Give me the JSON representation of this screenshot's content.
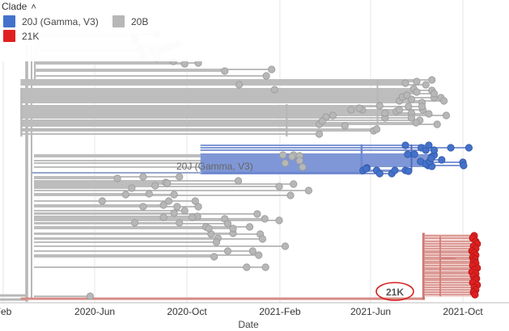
{
  "legend": {
    "title": "Clade",
    "items": [
      {
        "label": "20J (Gamma, V3)",
        "color": "#4472ca"
      },
      {
        "label": "20B",
        "color": "#b7b7b7"
      },
      {
        "label": "21K",
        "color": "#e02020"
      }
    ]
  },
  "chart_data": {
    "type": "scatter",
    "xlabel": "Date",
    "xlim": [
      "2020-02-01",
      "2021-11-20"
    ],
    "xticks": [
      "Feb",
      "2020-Jun",
      "2020-Oct",
      "2021-Feb",
      "2021-Jun",
      "2021-Oct"
    ],
    "branch_labels": [
      "20J (Gamma, V3)",
      "21K"
    ],
    "colors": {
      "20B": "#b7b7b7",
      "20J": "#4472ca",
      "21K": "#e02020"
    },
    "series": [
      {
        "name": "20B",
        "dates": [
          "2020-08-27",
          "2020-08-22",
          "2020-07-31",
          "2020-09-18",
          "2020-07-24",
          "2020-09-10",
          "2020-08-15",
          "2020-07-24",
          "2020-08-22",
          "2020-08-04",
          "2020-11-20",
          "2021-01-14",
          "2020-10-16",
          "2020-09-13",
          "2021-01-21",
          "2021-01-25",
          "2020-09-28",
          "2020-12-09",
          "2020-09-03",
          "2021-08-01",
          "2021-07-17",
          "2021-07-28",
          "2021-08-21",
          "2021-08-13",
          "2021-08-21",
          "2021-07-25",
          "2021-08-24",
          "2021-07-21",
          "2021-07-09",
          "2021-09-02",
          "2021-08-24",
          "2021-08-01",
          "2021-06-13",
          "2021-08-08",
          "2021-07-25",
          "2021-06-20",
          "2021-07-05",
          "2021-08-05",
          "2021-07-31",
          "2021-08-28",
          "2021-07-25",
          "2021-08-09",
          "2021-08-17",
          "2021-09-09",
          "2021-07-13",
          "2021-07-19",
          "2021-07-09",
          "2021-08-08",
          "2021-09-06",
          "2021-03-25",
          "2021-04-03",
          "2021-04-28",
          "2021-04-12",
          "2021-05-21",
          "2021-06-20",
          "2021-03-29",
          "2021-06-05",
          "2021-03-25",
          "2021-06-09",
          "2021-05-06",
          "2021-05-17",
          "2021-02-19",
          "2020-07-01",
          "2020-08-12",
          "2020-07-20",
          "2020-09-03",
          "2020-07-12",
          "2020-09-14",
          "2020-08-04",
          "2020-08-20",
          "2020-09-05",
          "2020-09-21",
          "2020-06-11",
          "2020-09-18",
          "2020-07-24",
          "2020-08-04",
          "2020-08-31",
          "2020-10-15",
          "2020-08-31",
          "2020-09-07",
          "2020-10-12",
          "2020-10-16",
          "2020-09-14",
          "2020-09-28",
          "2020-09-21",
          "2020-10-08",
          "2020-11-20",
          "2020-11-02",
          "2021-01-02",
          "2020-10-26",
          "2020-11-11",
          "2020-10-30",
          "2020-11-24",
          "2021-01-06",
          "2020-12-01",
          "2021-01-31",
          "2021-01-12",
          "2020-12-23",
          "2021-02-08",
          "2020-12-01",
          "2020-12-27",
          "2020-11-09",
          "2021-01-09",
          "2020-11-24",
          "2020-12-19",
          "2020-11-06",
          "2021-01-04",
          "2021-01-13",
          "2021-02-27",
          "2021-01-31",
          "2021-02-27",
          "2021-03-03",
          "2021-02-19",
          "2021-03-11",
          "2021-02-17",
          "2021-02-05",
          "2020-12-08",
          "2021-02-08",
          "2021-02-15",
          "2020-05-26"
        ],
        "values": [
          63,
          72,
          62,
          55,
          51,
          58,
          64,
          45,
          42,
          69,
          88,
          94,
          78,
          76,
          86,
          111,
          79,
          105,
          60,
          101,
          103,
          110,
          112,
          105,
          99,
          123,
          121,
          132,
          125,
          121,
          116,
          114,
          131,
          127,
          140,
          146,
          138,
          149,
          152,
          154,
          146,
          136,
          141,
          143,
          120,
          118,
          136,
          132,
          125,
          154,
          145,
          156,
          143,
          136,
          140,
          150,
          162,
          166,
          160,
          136,
          134,
          192,
          221,
          240,
          233,
          226,
          241,
          241,
          219,
          230,
          227,
          219,
          249,
          256,
          276,
          256,
          269,
          268,
          254,
          249,
          249,
          256,
          264,
          261,
          276,
          269,
          271,
          290,
          265,
          281,
          295,
          283,
          277,
          290,
          289,
          273,
          271,
          281,
          305,
          283,
          311,
          300,
          296,
          311,
          331,
          318,
          316,
          331,
          193,
          231,
          199,
          207,
          228,
          236,
          194,
          192,
          224,
          202,
          242,
          367
        ]
      },
      {
        "name": "20J (Gamma, V3)",
        "dates": [
          "2021-08-07",
          "2021-08-13",
          "2021-07-17",
          "2021-07-29",
          "2021-07-20",
          "2021-08-21",
          "2021-08-17",
          "2021-09-15",
          "2021-08-24",
          "2021-09-03",
          "2021-08-16",
          "2021-10-09",
          "2021-08-06",
          "2021-08-21",
          "2021-08-13",
          "2021-08-24",
          "2021-08-18",
          "2021-08-20",
          "2021-10-01",
          "2021-10-02",
          "2021-05-22",
          "2021-05-27",
          "2021-06-09",
          "2021-06-13",
          "2021-06-29",
          "2021-07-03",
          "2021-07-17",
          "2021-07-21",
          "2021-05-26"
        ],
        "values": [
          183,
          186,
          180,
          191,
          191,
          194,
          180,
          183,
          192,
          198,
          205,
          183,
          200,
          206,
          203,
          186,
          200,
          196,
          201,
          205,
          211,
          208,
          211,
          215,
          215,
          211,
          211,
          212,
          209
        ]
      },
      {
        "name": "21K",
        "dates": [
          "2021-10-16",
          "2021-10-14",
          "2021-10-18",
          "2021-10-20",
          "2021-10-15",
          "2021-10-18",
          "2021-10-13",
          "2021-10-16",
          "2021-10-18",
          "2021-10-14",
          "2021-10-17",
          "2021-10-15",
          "2021-10-18",
          "2021-10-14",
          "2021-10-20",
          "2021-10-16",
          "2021-10-13",
          "2021-10-18",
          "2021-10-15",
          "2021-10-19",
          "2021-10-17",
          "2021-10-14",
          "2021-10-20",
          "2021-10-16",
          "2021-10-18",
          "2021-10-15",
          "2021-10-17"
        ],
        "values": [
          292,
          295,
          299,
          302,
          305,
          308,
          311,
          313,
          316,
          319,
          321,
          324,
          326,
          329,
          332,
          334,
          337,
          339,
          342,
          345,
          347,
          350,
          353,
          356,
          359,
          362,
          365
        ]
      }
    ]
  }
}
